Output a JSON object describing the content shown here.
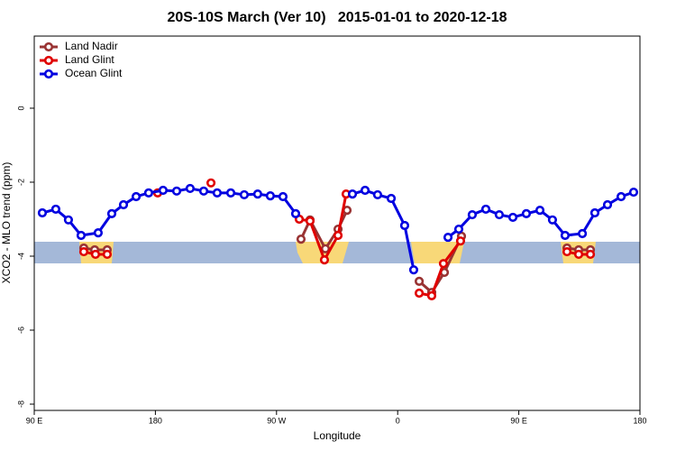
{
  "chart_data": {
    "type": "line",
    "title": "20S-10S March (Ver 10)   2015-01-01 to 2020-12-18",
    "x_label": "Longitude",
    "y_label": "XCO2 - MLO trend (ppm)",
    "xlim": [
      90,
      540
    ],
    "xticks": [
      {
        "value": 90,
        "label": "90 E"
      },
      {
        "value": 180,
        "label": "180"
      },
      {
        "value": 270,
        "label": "90 W"
      },
      {
        "value": 360,
        "label": "0"
      },
      {
        "value": 450,
        "label": "90 E"
      },
      {
        "value": 540,
        "label": "180"
      }
    ],
    "ylim": [
      -8.17,
      1.95
    ],
    "yticks": [
      0,
      -2,
      -4,
      -6,
      -8
    ],
    "legend": "top-left",
    "series": [
      {
        "name": "Land Nadir",
        "color": "#993333",
        "x": [
          126.8,
          134.9,
          144.2,
          200,
          288.2,
          294.9,
          306.3,
          315.7,
          322.4,
          350,
          376,
          385.3,
          394.7,
          407.4,
          450,
          485.8,
          494.5,
          503.2
        ],
        "values": [
          -3.78,
          -3.83,
          -3.83,
          null,
          -3.54,
          -3.02,
          -3.8,
          -3.27,
          -2.76,
          null,
          -4.68,
          -4.98,
          -4.44,
          -3.46,
          null,
          -3.78,
          -3.83,
          -3.83
        ]
      },
      {
        "name": "Land Glint",
        "color": "#e00000",
        "x": [
          126.8,
          135.5,
          144.2,
          160,
          181.7,
          200,
          221.3,
          250,
          286.9,
          294.9,
          305.6,
          315.7,
          321.7,
          350,
          376,
          385.3,
          394,
          406.7,
          450,
          485.8,
          494.5,
          503.2
        ],
        "values": [
          -3.88,
          -3.95,
          -3.95,
          null,
          -2.29,
          null,
          -2.02,
          null,
          -3.0,
          -3.05,
          -4.1,
          -3.44,
          -2.32,
          null,
          -5.0,
          -5.07,
          -4.2,
          -3.59,
          null,
          -3.88,
          -3.95,
          -3.95
        ]
      },
      {
        "name": "Ocean Glint",
        "color": "#0000e0",
        "x": [
          96,
          106,
          115.4,
          124.8,
          137.5,
          147.6,
          156.3,
          165.7,
          175,
          185.7,
          195.8,
          205.8,
          215.9,
          225.9,
          236,
          246,
          256,
          265.4,
          274.8,
          284.2,
          300,
          326.4,
          335.8,
          345.1,
          355.2,
          365.2,
          371.9,
          385,
          397.4,
          405.4,
          415.4,
          425.5,
          435.5,
          445.6,
          455.6,
          465.7,
          475,
          484.4,
          497.2,
          506.5,
          515.9,
          526,
          535.3
        ],
        "values": [
          -2.83,
          -2.73,
          -3.02,
          -3.44,
          -3.37,
          -2.85,
          -2.61,
          -2.39,
          -2.29,
          -2.22,
          -2.24,
          -2.17,
          -2.24,
          -2.29,
          -2.29,
          -2.34,
          -2.32,
          -2.37,
          -2.39,
          -2.85,
          null,
          -2.32,
          -2.22,
          -2.34,
          -2.44,
          -3.17,
          -4.37,
          null,
          -3.49,
          -3.27,
          -2.88,
          -2.73,
          -2.88,
          -2.95,
          -2.85,
          -2.76,
          -3.02,
          -3.44,
          -3.39,
          -2.83,
          -2.61,
          -2.39,
          -2.27
        ]
      }
    ]
  }
}
